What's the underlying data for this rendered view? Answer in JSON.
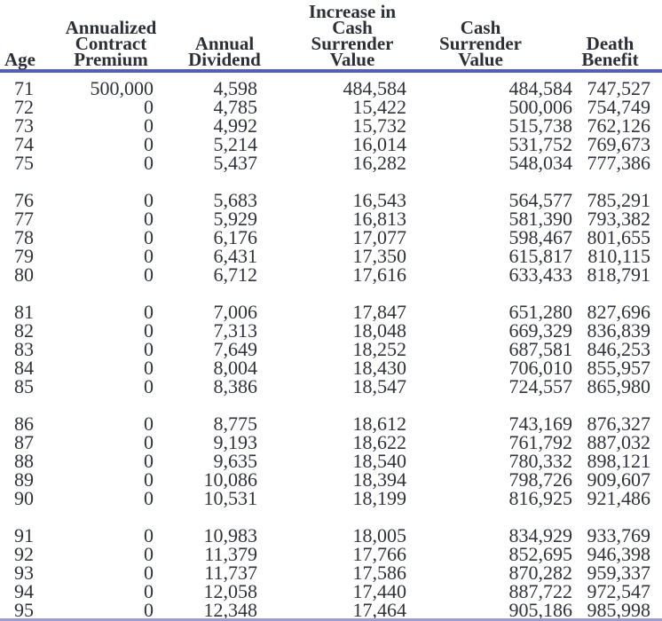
{
  "colors": {
    "header_rule_blue": "#565eb0",
    "bottom_rule_blue": "#99a0cf",
    "text": "#2f323a",
    "background": "#ffffff"
  },
  "table": {
    "columns": [
      {
        "name": "age",
        "label_lines": [
          "Age"
        ]
      },
      {
        "name": "annualized-contract-premium",
        "label_lines": [
          "Annualized",
          "Contract",
          "Premium"
        ]
      },
      {
        "name": "annual-dividend",
        "label_lines": [
          "Annual",
          "Dividend"
        ]
      },
      {
        "name": "increase-in-cash-surrender-value",
        "label_lines": [
          "Increase in",
          "Cash",
          "Surrender",
          "Value"
        ]
      },
      {
        "name": "cash-surrender-value",
        "label_lines": [
          "Cash",
          "Surrender",
          "Value"
        ]
      },
      {
        "name": "death-benefit",
        "label_lines": [
          "Death",
          "Benefit"
        ]
      }
    ],
    "groups": [
      {
        "rows": [
          [
            "71",
            "500,000",
            "4,598",
            "484,584",
            "484,584",
            "747,527"
          ],
          [
            "72",
            "0",
            "4,785",
            "15,422",
            "500,006",
            "754,749"
          ],
          [
            "73",
            "0",
            "4,992",
            "15,732",
            "515,738",
            "762,126"
          ],
          [
            "74",
            "0",
            "5,214",
            "16,014",
            "531,752",
            "769,673"
          ],
          [
            "75",
            "0",
            "5,437",
            "16,282",
            "548,034",
            "777,386"
          ]
        ]
      },
      {
        "rows": [
          [
            "76",
            "0",
            "5,683",
            "16,543",
            "564,577",
            "785,291"
          ],
          [
            "77",
            "0",
            "5,929",
            "16,813",
            "581,390",
            "793,382"
          ],
          [
            "78",
            "0",
            "6,176",
            "17,077",
            "598,467",
            "801,655"
          ],
          [
            "79",
            "0",
            "6,431",
            "17,350",
            "615,817",
            "810,115"
          ],
          [
            "80",
            "0",
            "6,712",
            "17,616",
            "633,433",
            "818,791"
          ]
        ]
      },
      {
        "rows": [
          [
            "81",
            "0",
            "7,006",
            "17,847",
            "651,280",
            "827,696"
          ],
          [
            "82",
            "0",
            "7,313",
            "18,048",
            "669,329",
            "836,839"
          ],
          [
            "83",
            "0",
            "7,649",
            "18,252",
            "687,581",
            "846,253"
          ],
          [
            "84",
            "0",
            "8,004",
            "18,430",
            "706,010",
            "855,957"
          ],
          [
            "85",
            "0",
            "8,386",
            "18,547",
            "724,557",
            "865,980"
          ]
        ]
      },
      {
        "rows": [
          [
            "86",
            "0",
            "8,775",
            "18,612",
            "743,169",
            "876,327"
          ],
          [
            "87",
            "0",
            "9,193",
            "18,622",
            "761,792",
            "887,032"
          ],
          [
            "88",
            "0",
            "9,635",
            "18,540",
            "780,332",
            "898,121"
          ],
          [
            "89",
            "0",
            "10,086",
            "18,394",
            "798,726",
            "909,607"
          ],
          [
            "90",
            "0",
            "10,531",
            "18,199",
            "816,925",
            "921,486"
          ]
        ]
      },
      {
        "rows": [
          [
            "91",
            "0",
            "10,983",
            "18,005",
            "834,929",
            "933,769"
          ],
          [
            "92",
            "0",
            "11,379",
            "17,766",
            "852,695",
            "946,398"
          ],
          [
            "93",
            "0",
            "11,737",
            "17,586",
            "870,282",
            "959,337"
          ],
          [
            "94",
            "0",
            "12,058",
            "17,440",
            "887,722",
            "972,547"
          ],
          [
            "95",
            "0",
            "12,348",
            "17,464",
            "905,186",
            "985,998"
          ]
        ]
      }
    ]
  }
}
